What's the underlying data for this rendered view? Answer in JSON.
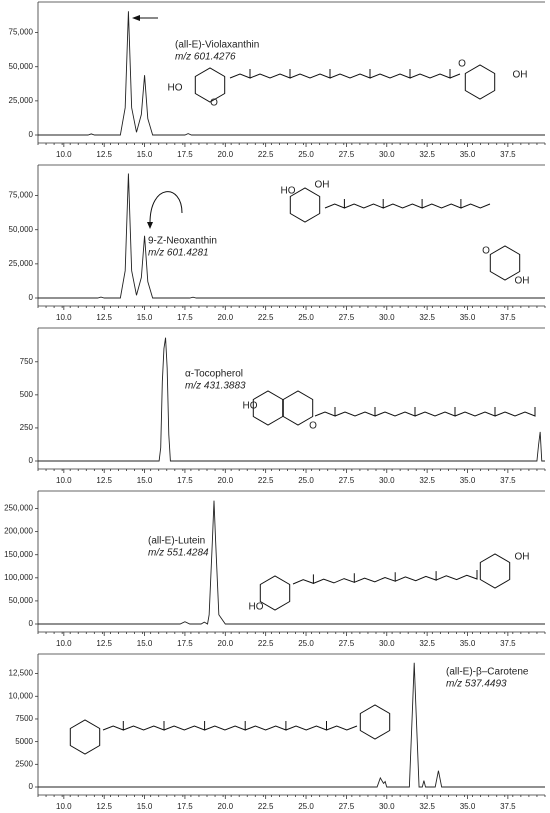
{
  "chart_data": [
    {
      "type": "line",
      "compound": "(all-E)-Violaxanthin",
      "mz": "m/z 601.4276",
      "structure_labels": [
        "HO",
        "O",
        "O",
        "OH"
      ],
      "x": [
        8.4,
        11.5,
        11.7,
        11.9,
        13.5,
        13.8,
        14.0,
        14.2,
        14.5,
        14.8,
        15.0,
        15.2,
        15.5,
        17.5,
        17.7,
        17.9,
        39.8
      ],
      "values": [
        0,
        0,
        800,
        0,
        0,
        20000,
        90600,
        20000,
        2000,
        15000,
        43800,
        12000,
        0,
        0,
        1000,
        0,
        0
      ],
      "color": "#222222",
      "xlim": [
        8.4,
        39.8
      ],
      "ylim": [
        0,
        93000
      ],
      "yticks": [
        0,
        {
          "value": 25000,
          "label": "25,000"
        },
        {
          "value": 50000,
          "label": "50,000"
        },
        {
          "value": 75000,
          "label": "75,000"
        }
      ],
      "xticks": [
        {
          "value": 10,
          "label": "10.0"
        },
        12.5,
        {
          "value": 15,
          "label": "15.0"
        },
        17.5,
        {
          "value": 20,
          "label": "20.0"
        },
        22.5,
        {
          "value": 25,
          "label": "25.0"
        },
        27.5,
        {
          "value": 30,
          "label": "30.0"
        },
        32.5,
        {
          "value": 35,
          "label": "35.0"
        },
        37.5
      ]
    },
    {
      "type": "line",
      "compound": "9-Z-Neoxanthin",
      "mz": "m/z 601.4281",
      "structure_labels": [
        "HO",
        "OH",
        "O",
        "OH"
      ],
      "x": [
        8.4,
        12.1,
        12.3,
        12.5,
        13.5,
        13.8,
        14.0,
        14.2,
        14.5,
        14.8,
        15.0,
        15.2,
        15.5,
        17.8,
        18.0,
        18.2,
        39.8
      ],
      "values": [
        0,
        0,
        700,
        0,
        0,
        20000,
        91200,
        20000,
        2000,
        15000,
        45600,
        12000,
        0,
        0,
        600,
        0,
        0
      ],
      "color": "#222222",
      "xlim": [
        8.4,
        39.8
      ],
      "ylim": [
        0,
        93000
      ],
      "yticks": [
        0,
        {
          "value": 25000,
          "label": "25,000"
        },
        {
          "value": 50000,
          "label": "50,000"
        },
        {
          "value": 75000,
          "label": "75,000"
        }
      ],
      "xticks": [
        {
          "value": 10,
          "label": "10.0"
        },
        12.5,
        {
          "value": 15,
          "label": "15.0"
        },
        17.5,
        {
          "value": 20,
          "label": "20.0"
        },
        22.5,
        {
          "value": 25,
          "label": "25.0"
        },
        27.5,
        {
          "value": 30,
          "label": "30.0"
        },
        32.5,
        {
          "value": 35,
          "label": "35.0"
        },
        37.5
      ]
    },
    {
      "type": "line",
      "compound": "α-Tocopherol",
      "mz": "m/z 431.3883",
      "structure_labels": [
        "HO",
        "O"
      ],
      "x": [
        8.4,
        15.9,
        16.0,
        16.1,
        16.2,
        16.3,
        16.4,
        16.5,
        16.6,
        39.3,
        39.4,
        39.5,
        39.6,
        39.8
      ],
      "values": [
        0,
        0,
        100,
        600,
        850,
        932,
        700,
        200,
        0,
        0,
        120,
        220,
        0,
        0
      ],
      "color": "#222222",
      "xlim": [
        8.4,
        39.8
      ],
      "ylim": [
        0,
        960
      ],
      "yticks": [
        0,
        250,
        500,
        750
      ],
      "xticks": [
        {
          "value": 10,
          "label": "10.0"
        },
        12.5,
        {
          "value": 15,
          "label": "15.0"
        },
        17.5,
        {
          "value": 20,
          "label": "20.0"
        },
        22.5,
        {
          "value": 25,
          "label": "25.0"
        },
        27.5,
        {
          "value": 30,
          "label": "30.0"
        },
        32.5,
        {
          "value": 35,
          "label": "35.0"
        },
        37.5
      ]
    },
    {
      "type": "line",
      "compound": "(all-E)-Lutein",
      "mz": "m/z 551.4284",
      "structure_labels": [
        "HO",
        "OH"
      ],
      "x": [
        8.4,
        17.2,
        17.5,
        17.8,
        18.5,
        18.7,
        18.9,
        19.0,
        19.2,
        19.3,
        19.4,
        19.6,
        20.0,
        39.8
      ],
      "values": [
        0,
        0,
        5000,
        0,
        0,
        4000,
        0,
        20000,
        180000,
        267000,
        180000,
        20000,
        0,
        0
      ],
      "color": "#222222",
      "xlim": [
        8.4,
        39.8
      ],
      "ylim": [
        0,
        275000
      ],
      "yticks": [
        0,
        {
          "value": 50000,
          "label": "50,000"
        },
        {
          "value": 100000,
          "label": "100,000"
        },
        {
          "value": 150000,
          "label": "150,000"
        },
        {
          "value": 200000,
          "label": "200,000"
        },
        {
          "value": 250000,
          "label": "250,000"
        }
      ],
      "xticks": [
        {
          "value": 10,
          "label": "10.0"
        },
        12.5,
        {
          "value": 15,
          "label": "15.0"
        },
        17.5,
        {
          "value": 20,
          "label": "20.0"
        },
        22.5,
        {
          "value": 25,
          "label": "25.0"
        },
        27.5,
        {
          "value": 30,
          "label": "30.0"
        },
        32.5,
        {
          "value": 35,
          "label": "35.0"
        },
        37.5
      ]
    },
    {
      "type": "line",
      "compound": "(all-E)-β–Carotene",
      "mz": "m/z 537.4493",
      "x": [
        8.4,
        29.4,
        29.6,
        29.8,
        29.9,
        30.0,
        31.4,
        31.6,
        31.7,
        31.8,
        32.0,
        32.2,
        32.3,
        32.4,
        33.0,
        33.2,
        33.4,
        39.8
      ],
      "values": [
        0,
        0,
        1000,
        400,
        600,
        0,
        0,
        9000,
        13700,
        9000,
        0,
        0,
        700,
        0,
        0,
        1800,
        0,
        0
      ],
      "color": "#222222",
      "xlim": [
        8.4,
        39.8
      ],
      "ylim": [
        0,
        14000
      ],
      "yticks": [
        0,
        2500,
        5000,
        7500,
        {
          "value": 10000,
          "label": "10,000"
        },
        {
          "value": 12500,
          "label": "12,500"
        }
      ],
      "xticks": [
        {
          "value": 10,
          "label": "10.0"
        },
        12.5,
        {
          "value": 15,
          "label": "15.0"
        },
        17.5,
        {
          "value": 20,
          "label": "20.0"
        },
        22.5,
        {
          "value": 25,
          "label": "25.0"
        },
        27.5,
        {
          "value": 30,
          "label": "30.0"
        },
        32.5,
        {
          "value": 35,
          "label": "35.0"
        },
        37.5
      ]
    }
  ]
}
